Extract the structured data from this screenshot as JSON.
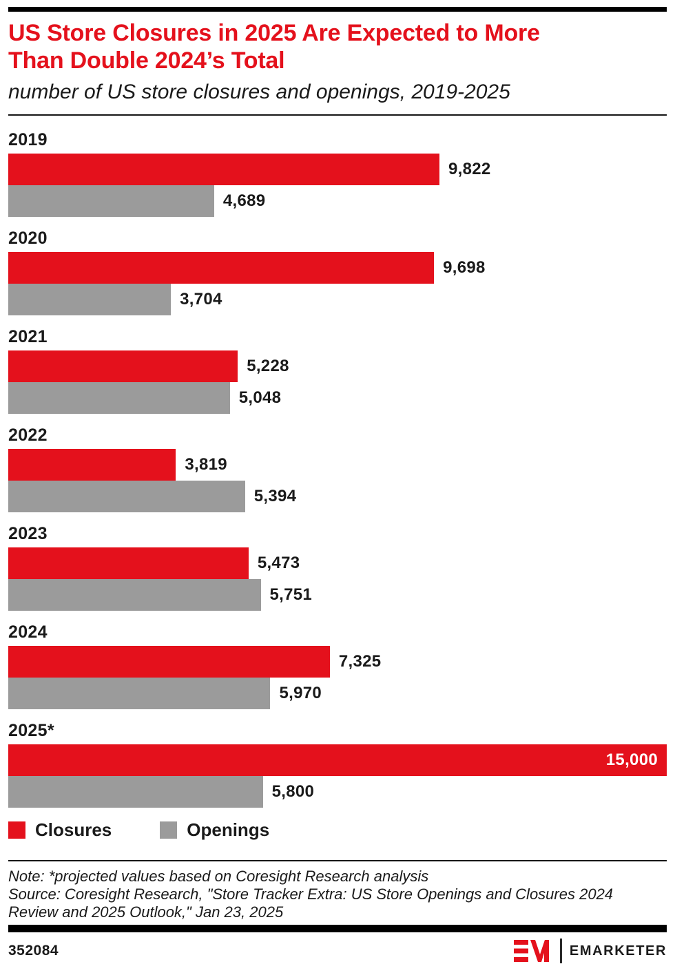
{
  "page": {
    "title_lines": [
      "US Store Closures in 2025 Are Expected to More",
      "Than Double 2024’s Total"
    ],
    "subtitle": "number of US store closures and openings, 2019-2025",
    "note": "Note: *projected values based on Coresight Research analysis",
    "source": "Source: Coresight Research, \"Store Tracker Extra: US Store Openings and Closures 2024 Review and 2025 Outlook,\" Jan 23, 2025",
    "chart_id": "352084",
    "brand": "EMARKETER"
  },
  "colors": {
    "closures": "#e4111c",
    "openings": "#9b9b9b",
    "title_red": "#e4111c",
    "text": "#1a1a1a"
  },
  "legend": [
    {
      "label": "Closures",
      "color": "#e4111c",
      "icon": "closures-swatch"
    },
    {
      "label": "Openings",
      "color": "#9b9b9b",
      "icon": "openings-swatch"
    }
  ],
  "chart_data": {
    "type": "bar",
    "orientation": "horizontal",
    "title": "US Store Closures in 2025 Are Expected to More Than Double 2024’s Total",
    "subtitle": "number of US store closures and openings, 2019-2025",
    "categories": [
      "2019",
      "2020",
      "2021",
      "2022",
      "2023",
      "2024",
      "2025*"
    ],
    "series": [
      {
        "name": "Closures",
        "color": "#e4111c",
        "values": [
          9822,
          9698,
          5228,
          3819,
          5473,
          7325,
          15000
        ],
        "labels": [
          "9,822",
          "9,698",
          "5,228",
          "3,819",
          "5,473",
          "7,325",
          "15,000"
        ]
      },
      {
        "name": "Openings",
        "color": "#9b9b9b",
        "values": [
          4689,
          3704,
          5048,
          5394,
          5751,
          5970,
          5800
        ],
        "labels": [
          "4,689",
          "3,704",
          "5,048",
          "5,394",
          "5,751",
          "5,970",
          "5,800"
        ]
      }
    ],
    "xlim": [
      0,
      15000
    ],
    "xlabel": "",
    "ylabel": "",
    "grid": false,
    "legend_position": "bottom"
  }
}
